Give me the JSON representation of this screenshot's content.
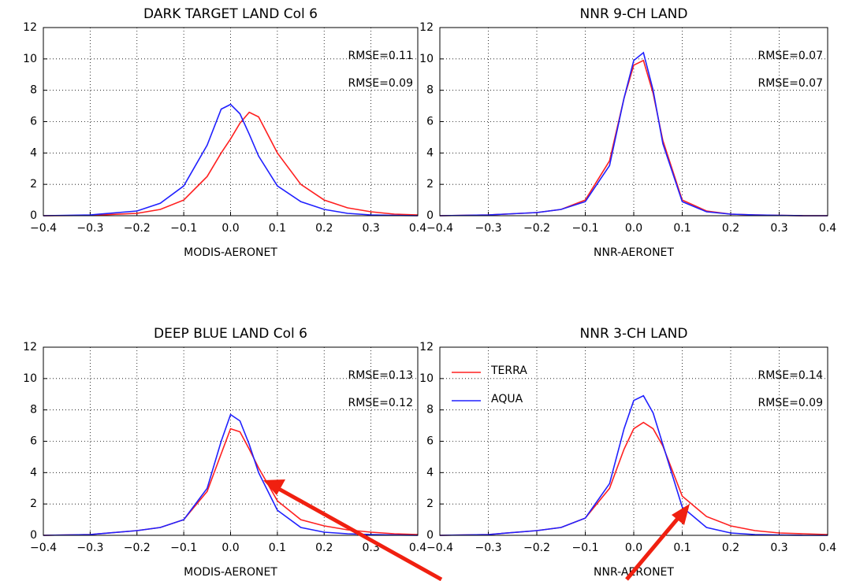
{
  "chart_data": [
    {
      "type": "line",
      "title": "DARK TARGET LAND Col 6",
      "x_label": "MODIS-AERONET",
      "x": [
        -0.4,
        -0.3,
        -0.2,
        -0.15,
        -0.1,
        -0.05,
        -0.02,
        0,
        0.02,
        0.04,
        0.06,
        0.1,
        0.15,
        0.2,
        0.25,
        0.3,
        0.35,
        0.4
      ],
      "series": [
        {
          "color": "#ff2020",
          "values": [
            0,
            0.02,
            0.15,
            0.4,
            1.0,
            2.5,
            4.0,
            4.9,
            5.9,
            6.6,
            6.3,
            4.0,
            2.0,
            1.0,
            0.5,
            0.25,
            0.1,
            0.05
          ]
        },
        {
          "color": "#2020ff",
          "values": [
            0,
            0.05,
            0.3,
            0.8,
            1.9,
            4.5,
            6.8,
            7.1,
            6.5,
            5.2,
            3.8,
            1.9,
            0.9,
            0.4,
            0.15,
            0.05,
            0.02,
            0
          ]
        }
      ],
      "annotations": [
        {
          "text": "RMSE=0.11",
          "color": "#ff2020"
        },
        {
          "text": "RMSE=0.09",
          "color": "#2020ff"
        }
      ],
      "xlim": [
        -0.4,
        0.4
      ],
      "ylim": [
        0,
        12
      ],
      "xticks": [
        {
          "value": -0.4,
          "label": "−0.4"
        },
        {
          "value": -0.3,
          "label": "−0.3"
        },
        {
          "value": -0.2,
          "label": "−0.2"
        },
        {
          "value": -0.1,
          "label": "−0.1"
        },
        {
          "value": 0,
          "label": "0.0"
        },
        0.1,
        0.2,
        0.3,
        0.4
      ],
      "yticks": [
        0,
        2,
        4,
        6,
        8,
        10,
        12
      ],
      "grid": true,
      "legend": false
    },
    {
      "type": "line",
      "title": "NNR 9-CH LAND",
      "x_label": "NNR-AERONET",
      "x": [
        -0.4,
        -0.3,
        -0.2,
        -0.15,
        -0.1,
        -0.05,
        -0.02,
        0,
        0.02,
        0.04,
        0.06,
        0.1,
        0.15,
        0.2,
        0.25,
        0.3,
        0.35,
        0.4
      ],
      "series": [
        {
          "color": "#ff2020",
          "values": [
            0,
            0.05,
            0.2,
            0.4,
            1.0,
            3.5,
            7.5,
            9.6,
            9.9,
            7.8,
            4.8,
            1.0,
            0.3,
            0.1,
            0.05,
            0.02,
            0,
            0
          ]
        },
        {
          "color": "#2020ff",
          "values": [
            0,
            0.05,
            0.2,
            0.4,
            0.9,
            3.2,
            7.5,
            9.9,
            10.4,
            8.0,
            4.6,
            0.9,
            0.25,
            0.1,
            0.05,
            0.02,
            0,
            0
          ]
        }
      ],
      "annotations": [
        {
          "text": "RMSE=0.07",
          "color": "#ff2020"
        },
        {
          "text": "RMSE=0.07",
          "color": "#2020ff"
        }
      ],
      "xlim": [
        -0.4,
        0.4
      ],
      "ylim": [
        0,
        12
      ],
      "xticks": [
        {
          "value": -0.4,
          "label": "−0.4"
        },
        {
          "value": -0.3,
          "label": "−0.3"
        },
        {
          "value": -0.2,
          "label": "−0.2"
        },
        {
          "value": -0.1,
          "label": "−0.1"
        },
        {
          "value": 0,
          "label": "0.0"
        },
        0.1,
        0.2,
        0.3,
        0.4
      ],
      "yticks": [
        0,
        2,
        4,
        6,
        8,
        10,
        12
      ],
      "grid": true,
      "legend": false
    },
    {
      "type": "line",
      "title": "DEEP BLUE LAND Col 6",
      "x_label": "MODIS-AERONET",
      "x": [
        -0.4,
        -0.3,
        -0.2,
        -0.15,
        -0.1,
        -0.05,
        -0.02,
        0,
        0.02,
        0.04,
        0.06,
        0.1,
        0.15,
        0.2,
        0.25,
        0.3,
        0.35,
        0.4
      ],
      "series": [
        {
          "color": "#ff2020",
          "values": [
            0,
            0.05,
            0.3,
            0.5,
            1.0,
            2.8,
            5.2,
            6.8,
            6.6,
            5.5,
            4.3,
            2.2,
            1.0,
            0.6,
            0.35,
            0.2,
            0.1,
            0.05
          ]
        },
        {
          "color": "#2020ff",
          "values": [
            0,
            0.05,
            0.3,
            0.5,
            1.0,
            3.0,
            6.0,
            7.7,
            7.3,
            5.8,
            4.0,
            1.6,
            0.5,
            0.2,
            0.1,
            0.05,
            0.02,
            0
          ]
        }
      ],
      "annotations": [
        {
          "text": "RMSE=0.13",
          "color": "#ff2020"
        },
        {
          "text": "RMSE=0.12",
          "color": "#2020ff"
        }
      ],
      "xlim": [
        -0.4,
        0.4
      ],
      "ylim": [
        0,
        12
      ],
      "xticks": [
        {
          "value": -0.4,
          "label": "−0.4"
        },
        {
          "value": -0.3,
          "label": "−0.3"
        },
        {
          "value": -0.2,
          "label": "−0.2"
        },
        {
          "value": -0.1,
          "label": "−0.1"
        },
        {
          "value": 0,
          "label": "0.0"
        },
        0.1,
        0.2,
        0.3,
        0.4
      ],
      "yticks": [
        0,
        2,
        4,
        6,
        8,
        10,
        12
      ],
      "grid": true,
      "legend": false
    },
    {
      "type": "line",
      "title": "NNR 3-CH LAND",
      "x_label": "NNR-AERONET",
      "x": [
        -0.4,
        -0.3,
        -0.2,
        -0.15,
        -0.1,
        -0.05,
        -0.02,
        0,
        0.02,
        0.04,
        0.06,
        0.1,
        0.15,
        0.2,
        0.25,
        0.3,
        0.35,
        0.4
      ],
      "series": [
        {
          "name": "TERRA",
          "color": "#ff2020",
          "values": [
            0,
            0.05,
            0.3,
            0.5,
            1.1,
            3.0,
            5.5,
            6.8,
            7.2,
            6.8,
            5.7,
            2.5,
            1.2,
            0.6,
            0.3,
            0.15,
            0.1,
            0.05
          ]
        },
        {
          "name": "AQUA",
          "color": "#2020ff",
          "values": [
            0,
            0.05,
            0.3,
            0.5,
            1.1,
            3.3,
            6.8,
            8.6,
            8.9,
            7.8,
            5.8,
            1.8,
            0.5,
            0.15,
            0.05,
            0.02,
            0,
            0
          ]
        }
      ],
      "annotations": [
        {
          "text": "RMSE=0.14",
          "color": "#ff2020"
        },
        {
          "text": "RMSE=0.09",
          "color": "#2020ff"
        }
      ],
      "xlim": [
        -0.4,
        0.4
      ],
      "ylim": [
        0,
        12
      ],
      "xticks": [
        {
          "value": -0.4,
          "label": "−0.4"
        },
        {
          "value": -0.3,
          "label": "−0.3"
        },
        {
          "value": -0.2,
          "label": "−0.2"
        },
        {
          "value": -0.1,
          "label": "−0.1"
        },
        {
          "value": 0,
          "label": "0.0"
        },
        0.1,
        0.2,
        0.3,
        0.4
      ],
      "yticks": [
        0,
        2,
        4,
        6,
        8,
        10,
        12
      ],
      "grid": true,
      "legend": "upper left"
    }
  ]
}
